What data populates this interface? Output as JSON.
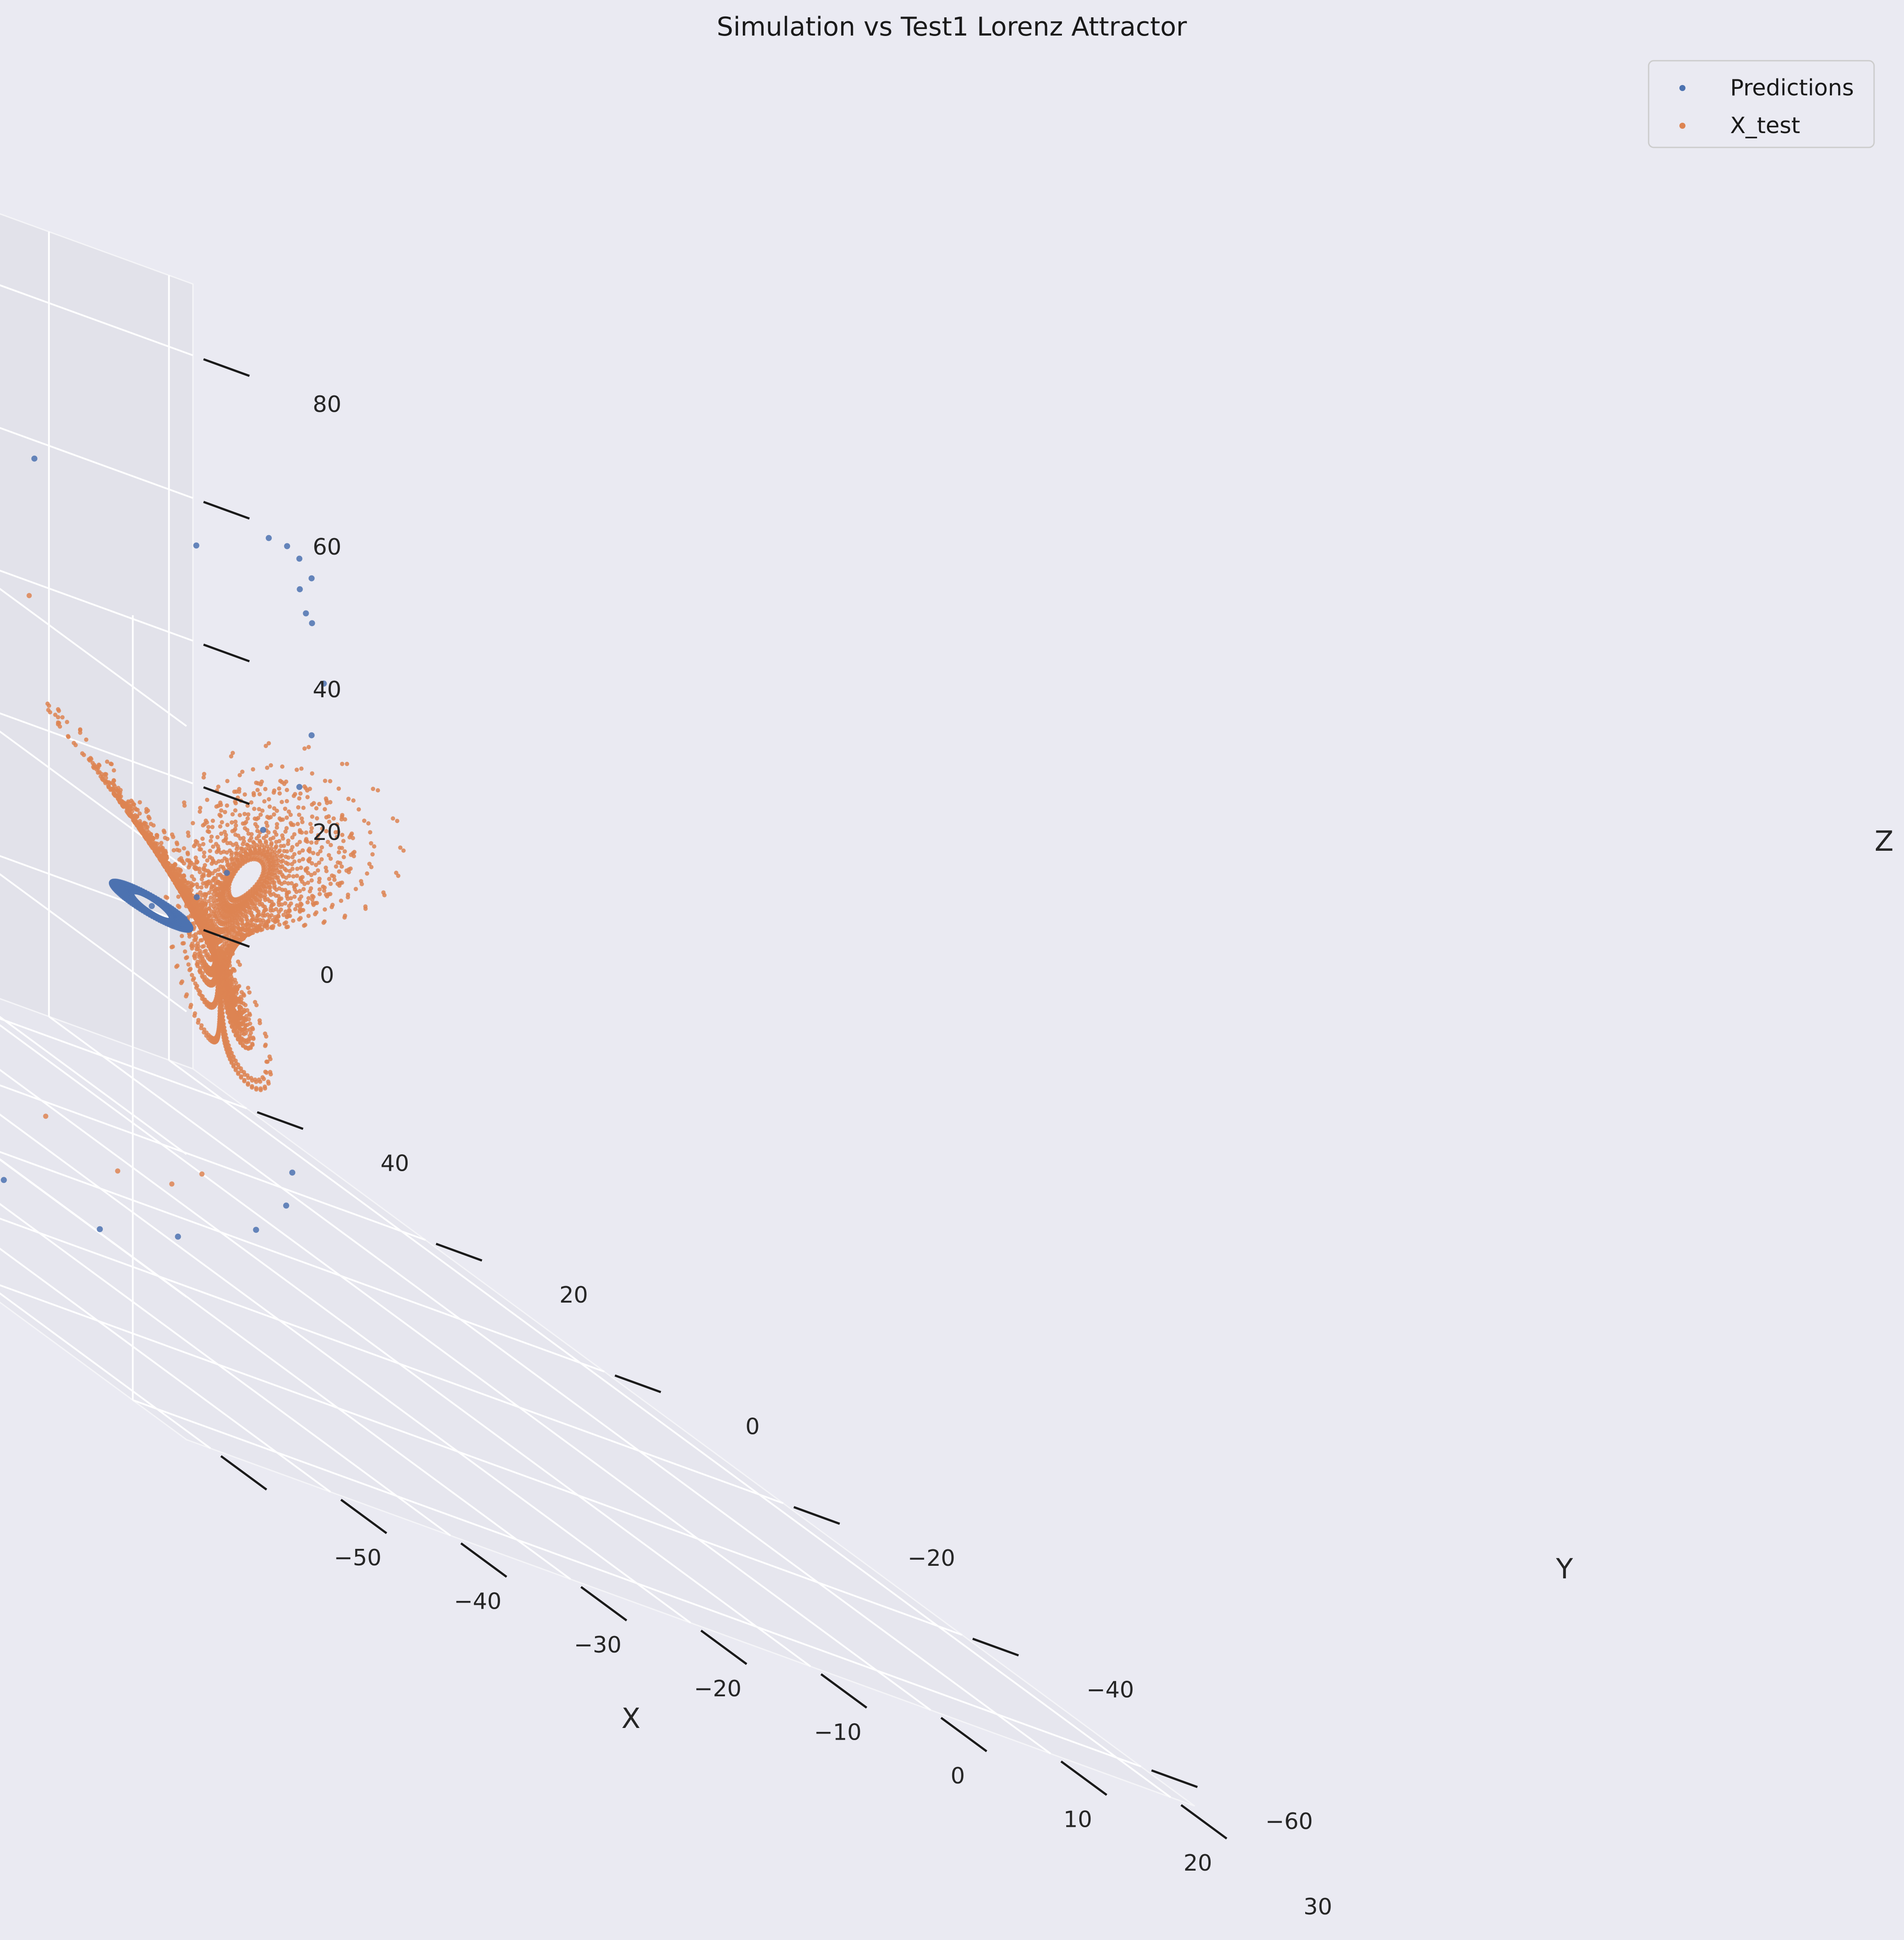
{
  "chart_data": {
    "type": "scatter3d",
    "title": "Simulation vs Test1 Lorenz Attractor",
    "xlabel": "X",
    "ylabel": "Y",
    "zlabel": "Z",
    "xlim": [
      -52,
      32
    ],
    "ylim": [
      -66,
      46
    ],
    "zlim": [
      -20,
      90
    ],
    "xticks": [
      -50,
      -40,
      -30,
      -20,
      -10,
      0,
      10,
      20,
      30
    ],
    "yticks": [
      -60,
      -40,
      -20,
      0,
      20,
      40
    ],
    "zticks": [
      0,
      20,
      40,
      60,
      80
    ],
    "xtick_labels": [
      "−50",
      "−40",
      "−30",
      "−20",
      "−10",
      "0",
      "10",
      "20",
      "30"
    ],
    "ytick_labels": [
      "−60",
      "−40",
      "−20",
      "0",
      "20",
      "40"
    ],
    "ztick_labels": [
      "0",
      "20",
      "40",
      "60",
      "80"
    ],
    "grid": true,
    "legend_position": "top-right",
    "background": "#eaeaf2",
    "series": [
      {
        "name": "Predictions",
        "color": "#4c72b0",
        "description": "Model predictions: transient spiral converging to a fixed point near (1, 9, 18) after an initial excursion",
        "sample_points": [
          [
            -2,
            0,
            75
          ],
          [
            -14,
            2,
            78
          ],
          [
            -24,
            4,
            74
          ],
          [
            -32,
            4,
            66
          ],
          [
            -38,
            4,
            56
          ],
          [
            -42,
            3,
            44
          ],
          [
            -44,
            2,
            32
          ],
          [
            -44,
            0,
            20
          ],
          [
            -42,
            -2,
            8
          ],
          [
            -38,
            -4,
            -4
          ],
          [
            -32,
            -6,
            -14
          ],
          [
            -24,
            -8,
            -20
          ],
          [
            -16,
            -8,
            -22
          ],
          [
            -8,
            -6,
            -20
          ],
          [
            0,
            -4,
            -16
          ],
          [
            4,
            -2,
            -12
          ],
          [
            6,
            0,
            -8
          ],
          [
            10,
            8,
            76
          ],
          [
            16,
            14,
            73
          ],
          [
            20,
            18,
            70
          ],
          [
            24,
            22,
            66
          ],
          [
            26,
            26,
            62
          ],
          [
            28,
            28,
            58
          ],
          [
            30,
            30,
            56
          ],
          [
            28,
            26,
            50
          ],
          [
            24,
            22,
            44
          ],
          [
            20,
            18,
            38
          ],
          [
            14,
            14,
            32
          ],
          [
            8,
            10,
            26
          ],
          [
            4,
            8,
            22
          ],
          [
            1,
            9,
            18
          ]
        ]
      },
      {
        "name": "X_test",
        "color": "#dd8452",
        "description": "Ground-truth Lorenz attractor trajectory (sigma=10, rho=28, beta=8/3) with two lobes centred near (±8.5, ±8.5, 27)",
        "sample_points": [
          [
            -30,
            0,
            50
          ],
          [
            -34,
            2,
            44
          ],
          [
            -36,
            2,
            36
          ],
          [
            -38,
            0,
            28
          ],
          [
            -38,
            -2,
            20
          ],
          [
            -36,
            -4,
            12
          ],
          [
            -32,
            -6,
            4
          ],
          [
            -28,
            -8,
            -2
          ],
          [
            -22,
            -10,
            -8
          ],
          [
            -16,
            -10,
            -12
          ],
          [
            -10,
            -8,
            -12
          ],
          [
            -6,
            -6,
            -10
          ],
          [
            -20,
            10,
            52
          ],
          [
            -12,
            14,
            54
          ],
          [
            -4,
            16,
            52
          ]
        ]
      }
    ]
  }
}
